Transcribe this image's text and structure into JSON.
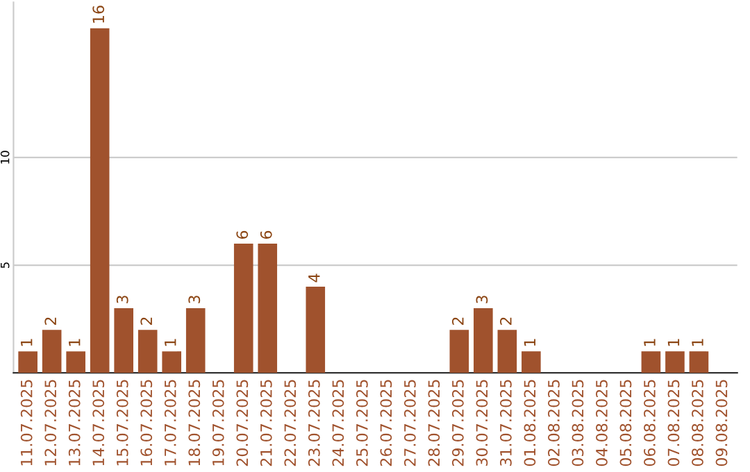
{
  "chart_data": {
    "type": "bar",
    "categories": [
      "11.07.2025",
      "12.07.2025",
      "13.07.2025",
      "14.07.2025",
      "15.07.2025",
      "16.07.2025",
      "17.07.2025",
      "18.07.2025",
      "19.07.2025",
      "20.07.2025",
      "21.07.2025",
      "22.07.2025",
      "23.07.2025",
      "24.07.2025",
      "25.07.2025",
      "26.07.2025",
      "27.07.2025",
      "28.07.2025",
      "29.07.2025",
      "30.07.2025",
      "31.07.2025",
      "01.08.2025",
      "02.08.2025",
      "03.08.2025",
      "04.08.2025",
      "05.08.2025",
      "06.08.2025",
      "07.08.2025",
      "08.08.2025",
      "09.08.2025"
    ],
    "values": [
      1,
      2,
      1,
      16,
      3,
      2,
      1,
      3,
      0,
      6,
      6,
      0,
      4,
      0,
      0,
      0,
      0,
      0,
      2,
      3,
      2,
      1,
      0,
      0,
      0,
      0,
      1,
      1,
      1,
      0
    ],
    "value_labels": [
      "1",
      "2",
      "1",
      "16",
      "3",
      "2",
      "1",
      "3",
      null,
      "6",
      "6",
      null,
      "4",
      null,
      null,
      null,
      null,
      null,
      "2",
      "3",
      "2",
      "1",
      null,
      null,
      null,
      null,
      "1",
      "1",
      "1",
      null
    ],
    "color": "#a0522d",
    "ylim": [
      0,
      17.2
    ],
    "yticks": [
      5,
      10
    ],
    "grid": "y"
  }
}
